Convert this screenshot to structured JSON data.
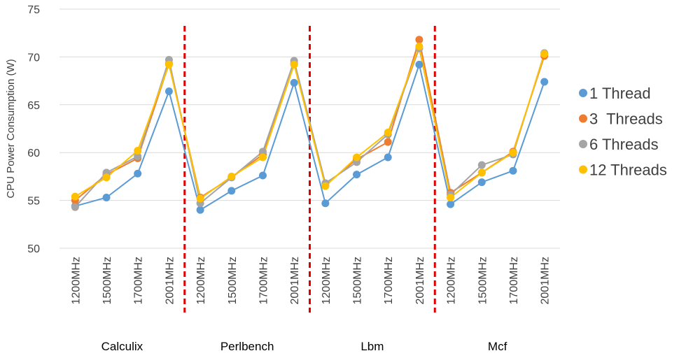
{
  "chart_data": {
    "type": "line",
    "ylabel": "CPU Power Consumption (W)",
    "ylim": [
      50,
      75
    ],
    "yticks": [
      50,
      55,
      60,
      65,
      70,
      75
    ],
    "grid": true,
    "legend_position": "right",
    "categories": [
      "1200MHz",
      "1500MHz",
      "1700MHz",
      "2001MHz",
      "1200MHz",
      "1500MHz",
      "1700MHz",
      "2001MHz",
      "1200MHz",
      "1500MHz",
      "1700MHz",
      "2001MHz",
      "1200MHz",
      "1500MHz",
      "1700MHz",
      "2001MHz"
    ],
    "groups": [
      "Calculix",
      "Perlbench",
      "Lbm",
      "Mcf"
    ],
    "separator_color": "#e00000",
    "series": [
      {
        "name": "1 Thread",
        "color": "#5b9bd5",
        "values": [
          54.4,
          55.3,
          57.8,
          66.4,
          54.0,
          56.0,
          57.6,
          67.3,
          54.7,
          57.7,
          59.5,
          69.2,
          54.6,
          56.9,
          58.1,
          67.4
        ]
      },
      {
        "name": "3  Threads",
        "color": "#ed7d31",
        "values": [
          55.0,
          57.7,
          59.4,
          69.3,
          55.3,
          57.4,
          59.8,
          69.3,
          56.6,
          59.3,
          61.1,
          71.8,
          55.8,
          57.9,
          60.1,
          70.1
        ]
      },
      {
        "name": "6 Threads",
        "color": "#a5a5a5",
        "values": [
          54.3,
          57.9,
          59.6,
          69.7,
          54.7,
          57.4,
          60.1,
          69.6,
          56.8,
          59.0,
          61.9,
          70.9,
          55.6,
          58.7,
          59.8,
          70.4
        ]
      },
      {
        "name": "12 Threads",
        "color": "#ffc000",
        "values": [
          55.4,
          57.4,
          60.2,
          69.2,
          55.2,
          57.5,
          59.5,
          69.2,
          56.5,
          59.5,
          62.1,
          71.1,
          55.3,
          57.9,
          60.0,
          70.3
        ]
      }
    ]
  }
}
